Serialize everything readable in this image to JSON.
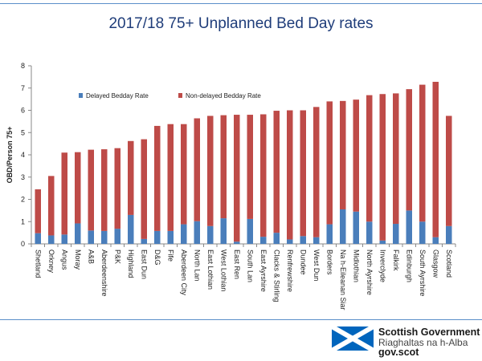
{
  "title": "2017/18 75+ Unplanned Bed Day rates",
  "chart_data": {
    "type": "bar",
    "stacked": true,
    "title": "2017/18 75+ Unplanned Bed Day rates",
    "xlabel": "",
    "ylabel": "OBD/Person 75+",
    "ylim": [
      0,
      8
    ],
    "yticks": [
      "0",
      "1",
      "2",
      "3",
      "4",
      "5",
      "6",
      "7",
      "8"
    ],
    "grid": false,
    "legend_position": "top-left",
    "categories": [
      "Shetland",
      "Orkney",
      "Angus",
      "Moray",
      "A&B",
      "Aberdeenshire",
      "P&K",
      "Highland",
      "East Dun",
      "D&G",
      "Fife",
      "Aberdeen City",
      "North Lan",
      "East Lothian",
      "West Lothian",
      "East Ren",
      "South Lan",
      "East Ayrshire",
      "Clacks & Stirling",
      "Renfrewshire",
      "Dundee",
      "West Dun",
      "Borders",
      "Na h-Eileanan Siar",
      "Midlothian",
      "North Ayrshire",
      "Inverclyde",
      "Falkirk",
      "Edinburgh",
      "South Ayrshire",
      "Glasgow",
      "Scotland"
    ],
    "series": [
      {
        "name": "Delayed Bedday Rate",
        "color": "#4a7ebb",
        "values": [
          0.48,
          0.38,
          0.42,
          0.92,
          0.6,
          0.58,
          0.68,
          1.3,
          0.22,
          0.58,
          0.58,
          0.88,
          1.02,
          0.8,
          1.15,
          0.1,
          1.12,
          0.32,
          0.5,
          0.2,
          0.35,
          0.3,
          0.88,
          1.55,
          1.45,
          1.0,
          0.15,
          0.9,
          1.5,
          1.0,
          0.3,
          0.8
        ]
      },
      {
        "name": "Non-delayed Bedday Rate",
        "color": "#be4b48",
        "values": [
          1.97,
          2.67,
          3.68,
          3.2,
          3.63,
          3.67,
          3.62,
          3.32,
          4.48,
          4.72,
          4.8,
          4.5,
          4.62,
          4.95,
          4.63,
          5.7,
          4.68,
          5.5,
          5.48,
          5.8,
          5.65,
          5.85,
          5.52,
          4.87,
          5.03,
          5.68,
          6.58,
          5.86,
          5.45,
          6.15,
          6.98,
          4.95
        ]
      }
    ]
  },
  "logo": {
    "line1": "Scottish Government",
    "line2": "Riaghaltas na h-Alba",
    "line3": "gov.scot"
  }
}
